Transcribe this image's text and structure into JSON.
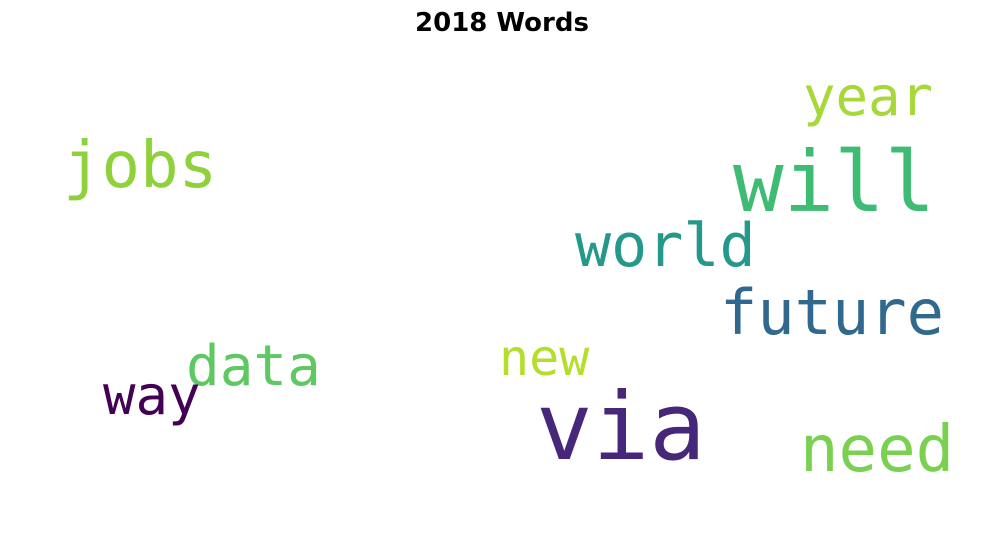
{
  "title": "2018 Words",
  "words": [
    {
      "text": "via",
      "color": "#46277a"
    },
    {
      "text": "will",
      "color": "#3fbc73"
    },
    {
      "text": "future",
      "color": "#31688e"
    },
    {
      "text": "world",
      "color": "#24988b"
    },
    {
      "text": "jobs",
      "color": "#8fd13b"
    },
    {
      "text": "need",
      "color": "#7ad151"
    },
    {
      "text": "year",
      "color": "#a5d838"
    },
    {
      "text": "data",
      "color": "#5ec962"
    },
    {
      "text": "new",
      "color": "#b5de2b"
    },
    {
      "text": "way",
      "color": "#440154"
    }
  ]
}
